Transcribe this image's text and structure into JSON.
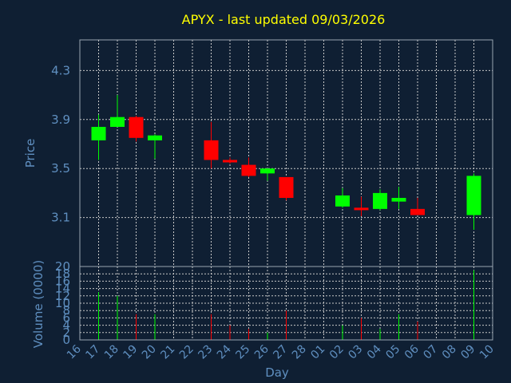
{
  "chart_data": [
    {
      "type": "candlestick",
      "title": "APYX - last updated 09/03/2026",
      "ylabel": "Price",
      "ylim": [
        2.7,
        4.55
      ],
      "yticks": [
        3.1,
        3.5,
        3.9,
        4.3
      ],
      "ytick_labels": [
        "3.1",
        "3.5",
        "3.9",
        "4.3"
      ],
      "grid": true,
      "x_labels": [
        "16",
        "17",
        "18",
        "19",
        "20",
        "21",
        "22",
        "23",
        "24",
        "25",
        "26",
        "27",
        "28",
        "01",
        "02",
        "03",
        "04",
        "05",
        "06",
        "07",
        "08",
        "09",
        "10"
      ],
      "candles": [
        {
          "day": "17",
          "open": 3.73,
          "high": 3.94,
          "low": 3.57,
          "close": 3.84,
          "dir": "up"
        },
        {
          "day": "18",
          "open": 3.84,
          "high": 4.1,
          "low": 3.84,
          "close": 3.92,
          "dir": "up"
        },
        {
          "day": "19",
          "open": 3.92,
          "high": 3.93,
          "low": 3.72,
          "close": 3.75,
          "dir": "down"
        },
        {
          "day": "20",
          "open": 3.73,
          "high": 3.78,
          "low": 3.58,
          "close": 3.77,
          "dir": "up"
        },
        {
          "day": "23",
          "open": 3.73,
          "high": 3.88,
          "low": 3.5,
          "close": 3.57,
          "dir": "down"
        },
        {
          "day": "24",
          "open": 3.57,
          "high": 3.59,
          "low": 3.54,
          "close": 3.55,
          "dir": "down"
        },
        {
          "day": "25",
          "open": 3.53,
          "high": 3.59,
          "low": 3.43,
          "close": 3.44,
          "dir": "down"
        },
        {
          "day": "26",
          "open": 3.46,
          "high": 3.5,
          "low": 3.4,
          "close": 3.5,
          "dir": "up"
        },
        {
          "day": "27",
          "open": 3.43,
          "high": 3.43,
          "low": 3.24,
          "close": 3.26,
          "dir": "down"
        },
        {
          "day": "02",
          "open": 3.19,
          "high": 3.34,
          "low": 3.18,
          "close": 3.28,
          "dir": "up"
        },
        {
          "day": "03",
          "open": 3.18,
          "high": 3.27,
          "low": 3.11,
          "close": 3.16,
          "dir": "down"
        },
        {
          "day": "04",
          "open": 3.17,
          "high": 3.33,
          "low": 3.16,
          "close": 3.3,
          "dir": "up"
        },
        {
          "day": "05",
          "open": 3.23,
          "high": 3.35,
          "low": 3.17,
          "close": 3.26,
          "dir": "up"
        },
        {
          "day": "06",
          "open": 3.17,
          "high": 3.26,
          "low": 3.12,
          "close": 3.12,
          "dir": "down"
        },
        {
          "day": "09",
          "open": 3.12,
          "high": 3.46,
          "low": 3.0,
          "close": 3.44,
          "dir": "up"
        }
      ],
      "colors": {
        "up": "#00ff00",
        "down": "#ff0000",
        "background": "#0f1f33",
        "title": "#ffff00",
        "axis": "#5f8fc0"
      }
    },
    {
      "type": "bar",
      "ylabel": "Volume (0000)",
      "xlabel": "Day",
      "ylim": [
        0,
        20
      ],
      "yticks": [
        0,
        2,
        4,
        6,
        8,
        10,
        12,
        14,
        16,
        18,
        20
      ],
      "ytick_labels": [
        "0",
        "2",
        "4",
        "6",
        "8",
        "10",
        "12",
        "14",
        "16",
        "18",
        "20"
      ],
      "volumes": [
        {
          "day": "17",
          "value": 13,
          "dir": "up"
        },
        {
          "day": "18",
          "value": 12,
          "dir": "up"
        },
        {
          "day": "19",
          "value": 7,
          "dir": "down"
        },
        {
          "day": "20",
          "value": 7,
          "dir": "up"
        },
        {
          "day": "23",
          "value": 7,
          "dir": "down"
        },
        {
          "day": "24",
          "value": 4,
          "dir": "down"
        },
        {
          "day": "25",
          "value": 3,
          "dir": "down"
        },
        {
          "day": "26",
          "value": 2,
          "dir": "up"
        },
        {
          "day": "27",
          "value": 8,
          "dir": "down"
        },
        {
          "day": "02",
          "value": 4,
          "dir": "up"
        },
        {
          "day": "03",
          "value": 6,
          "dir": "down"
        },
        {
          "day": "04",
          "value": 3,
          "dir": "up"
        },
        {
          "day": "05",
          "value": 7,
          "dir": "up"
        },
        {
          "day": "06",
          "value": 5,
          "dir": "down"
        },
        {
          "day": "09",
          "value": 19,
          "dir": "up"
        }
      ]
    }
  ]
}
